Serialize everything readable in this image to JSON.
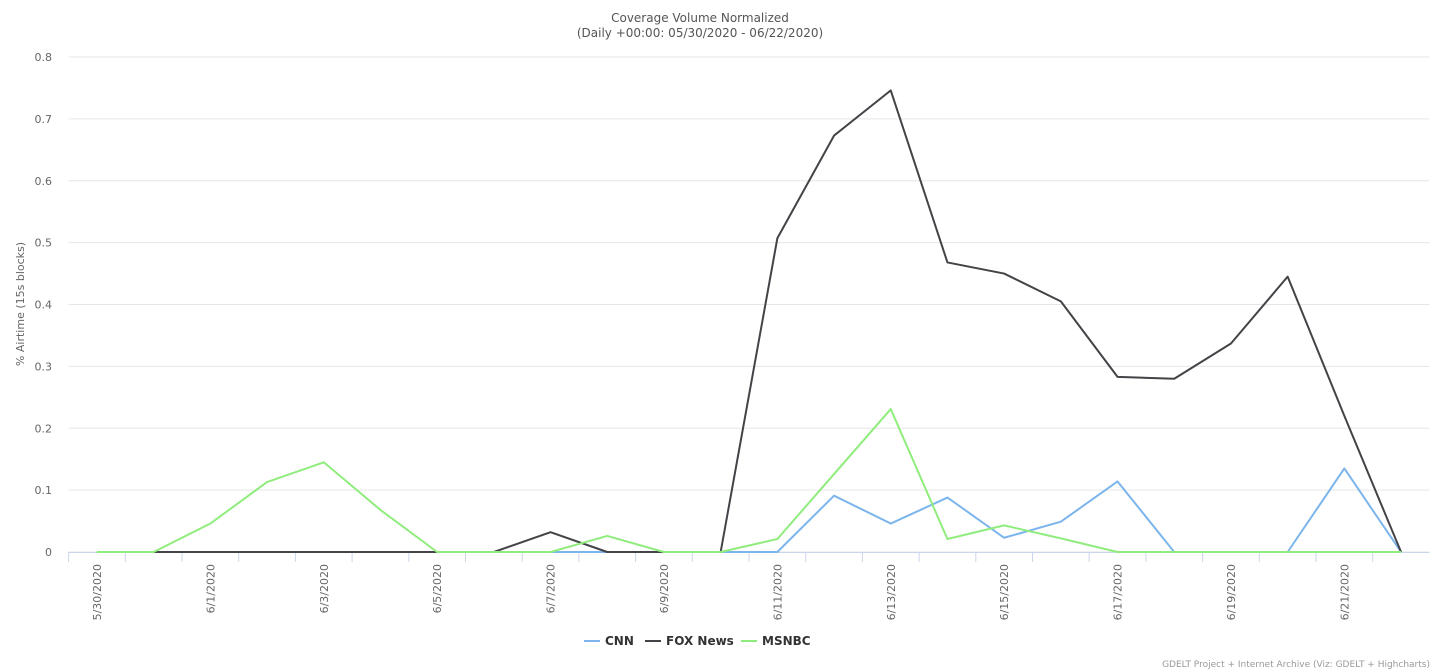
{
  "chart_data": {
    "type": "line",
    "title": "Coverage Volume Normalized",
    "subtitle": "(Daily +00:00: 05/30/2020 - 06/22/2020)",
    "y_label": "% Airtime (15s blocks)",
    "credit": "GDELT Project + Internet Archive (Viz: GDELT + Highcharts)",
    "categories": [
      "5/30/2020",
      null,
      "6/1/2020",
      null,
      "6/3/2020",
      null,
      "6/5/2020",
      null,
      "6/7/2020",
      null,
      "6/9/2020",
      null,
      "6/11/2020",
      null,
      "6/13/2020",
      null,
      "6/15/2020",
      null,
      "6/17/2020",
      null,
      "6/19/2020",
      null,
      "6/21/2020",
      null
    ],
    "series": [
      {
        "name": "CNN",
        "color": "#7cb5ec",
        "values": [
          0,
          0,
          0,
          0,
          0,
          0,
          0,
          0,
          0,
          0,
          0,
          0,
          0,
          0.091,
          0.046,
          0.088,
          0.023,
          0.049,
          0.114,
          0,
          0,
          0,
          0.135,
          0
        ]
      },
      {
        "name": "FOX News",
        "color": "#434348",
        "values": [
          0,
          0,
          0,
          0,
          0,
          0,
          0,
          0,
          0.032,
          0,
          0,
          0,
          0.507,
          0.673,
          0.746,
          0.468,
          0.45,
          0.405,
          0.283,
          0.28,
          0.337,
          0.445,
          0.22,
          0
        ]
      },
      {
        "name": "MSNBC",
        "color": "#90ed7d",
        "values": [
          0,
          0,
          0.046,
          0.113,
          0.145,
          0.068,
          0,
          0,
          0,
          0.026,
          0,
          0,
          0.021,
          0.126,
          0.231,
          0.021,
          0.043,
          0.022,
          0,
          0,
          0,
          0,
          0,
          0
        ]
      }
    ],
    "ylim": [
      0,
      0.8
    ],
    "yticks": [
      0,
      0.1,
      0.2,
      0.3,
      0.4,
      0.5,
      0.6,
      0.7,
      0.8
    ],
    "grid": true,
    "legend": "bottom"
  }
}
